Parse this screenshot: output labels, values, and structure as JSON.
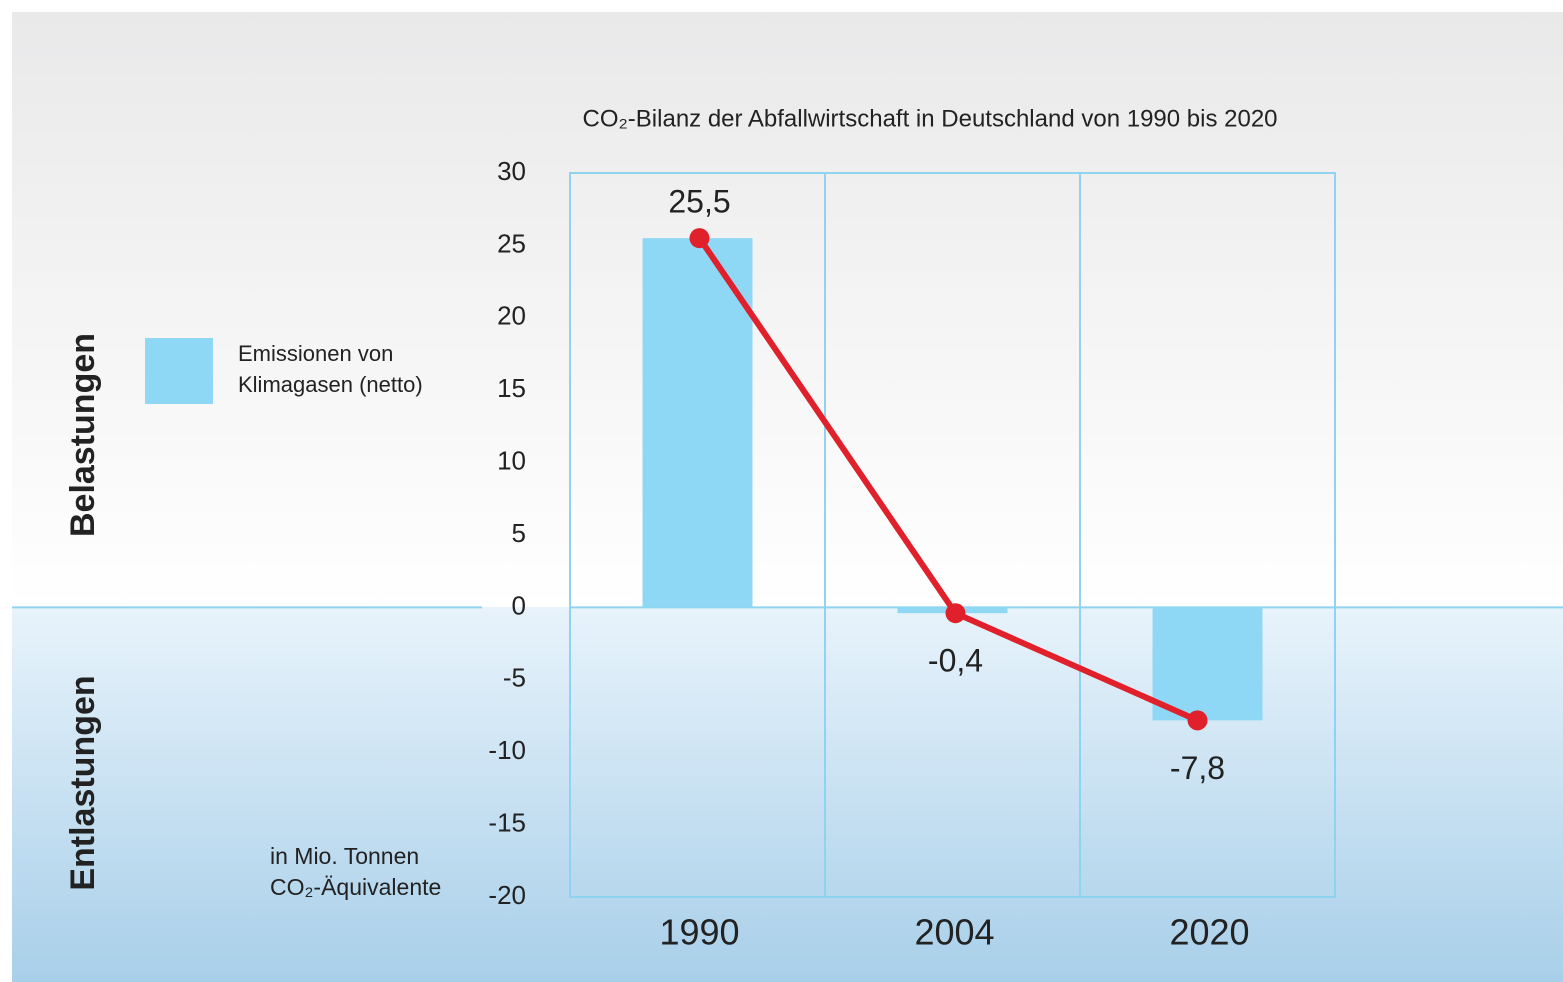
{
  "chart_data": {
    "type": "bar",
    "title": "CO₂-Bilanz der Abfallwirtschaft in Deutschland von 1990 bis 2020",
    "categories": [
      "1990",
      "2004",
      "2020"
    ],
    "series": [
      {
        "name": "Emissionen von Klimagasen (netto)",
        "type": "bar",
        "color": "#8fd8f5",
        "values": [
          25.5,
          -0.4,
          -7.8
        ]
      },
      {
        "type": "line",
        "color": "#e0202a",
        "values": [
          25.5,
          -0.4,
          -7.8
        ],
        "value_labels": [
          "25,5",
          "-0,4",
          "-7,8"
        ]
      }
    ],
    "ylim": [
      -20,
      30
    ],
    "yticks": [
      30,
      25,
      20,
      15,
      10,
      5,
      0,
      -5,
      -10,
      -15,
      -20
    ],
    "upper_label": "Belastungen",
    "lower_label": "Entlastungen",
    "unit_label": [
      "in Mio. Tonnen",
      "CO₂-Äquivalente"
    ],
    "legend": "left"
  }
}
